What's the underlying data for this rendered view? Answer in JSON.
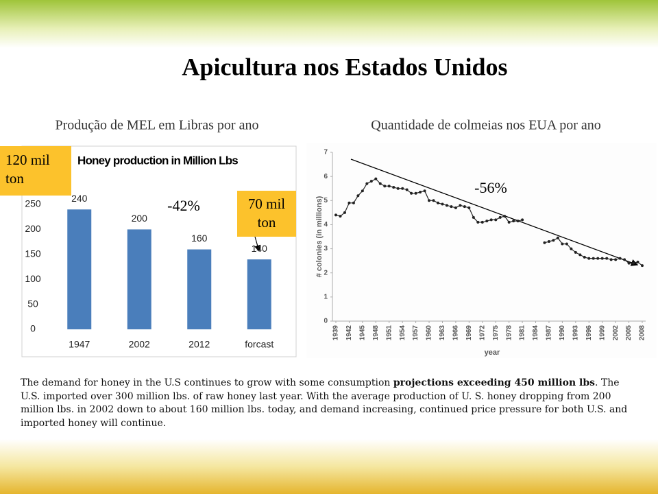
{
  "title": "Apicultura nos Estados Unidos",
  "body": {
    "before": "The demand for honey in the U.S continues to grow with some consumption ",
    "bold": "projections exceeding 450 million lbs",
    "after": ". The U.S. imported over 300 million lbs. of raw honey last year. With the average production of U. S. honey dropping from 200 million lbs. in 2002 down to about 160 million lbs. today, and demand increasing, continued price pressure for both U.S. and imported honey will continue."
  },
  "chart_data": [
    {
      "type": "bar",
      "subtitle": "Produção de MEL em Libras por ano",
      "title": "Honey production in Million Lbs",
      "categories": [
        "1947",
        "2002",
        "2012",
        "forcast"
      ],
      "values": [
        240,
        200,
        160,
        140
      ],
      "color": "#4a7ebb",
      "ylim": [
        0,
        300
      ],
      "yticks": [
        0,
        50,
        100,
        150,
        200,
        250
      ],
      "grid": false,
      "annotations": [
        "120 mil ton",
        "-42%",
        "70 mil ton"
      ]
    },
    {
      "type": "line",
      "subtitle": "Quantidade de colmeias nos EUA por ano",
      "ylabel": "# colonies (in millions)",
      "xlabel": "year",
      "color": "#222222",
      "x": [
        1939,
        1940,
        1941,
        1942,
        1943,
        1944,
        1945,
        1946,
        1947,
        1948,
        1949,
        1950,
        1951,
        1952,
        1953,
        1954,
        1955,
        1956,
        1957,
        1958,
        1959,
        1960,
        1961,
        1962,
        1963,
        1964,
        1965,
        1966,
        1967,
        1968,
        1969,
        1970,
        1971,
        1972,
        1973,
        1974,
        1975,
        1976,
        1977,
        1978,
        1979,
        1980,
        1981,
        1982,
        1983,
        1984,
        1985,
        1986,
        1987,
        1988,
        1989,
        1990,
        1991,
        1992,
        1993,
        1994,
        1995,
        1996,
        1997,
        1998,
        1999,
        2000,
        2001,
        2002,
        2003,
        2004,
        2005,
        2006,
        2007,
        2008
      ],
      "values": [
        4.4,
        4.35,
        4.5,
        4.9,
        4.9,
        5.2,
        5.4,
        5.7,
        5.8,
        5.9,
        5.7,
        5.6,
        5.6,
        5.55,
        5.5,
        5.5,
        5.45,
        5.3,
        5.3,
        5.35,
        5.4,
        5.0,
        5.0,
        4.9,
        4.85,
        4.8,
        4.75,
        4.7,
        4.8,
        4.75,
        4.7,
        4.3,
        4.1,
        4.1,
        4.15,
        4.2,
        4.2,
        4.3,
        4.35,
        4.1,
        4.15,
        4.15,
        4.2,
        null,
        null,
        null,
        null,
        3.25,
        3.3,
        3.35,
        3.45,
        3.2,
        3.2,
        3.0,
        2.85,
        2.75,
        2.65,
        2.6,
        2.6,
        2.6,
        2.6,
        2.6,
        2.55,
        2.55,
        2.6,
        2.55,
        2.4,
        2.4,
        2.45,
        2.3
      ],
      "xlim": [
        1939,
        2008
      ],
      "xticks": [
        1939,
        1942,
        1945,
        1948,
        1951,
        1954,
        1957,
        1960,
        1963,
        1966,
        1969,
        1972,
        1975,
        1978,
        1981,
        1984,
        1987,
        1990,
        1993,
        1996,
        1999,
        2002,
        2005,
        2008
      ],
      "ylim": [
        0,
        7
      ],
      "yticks": [
        0,
        1,
        2,
        3,
        4,
        5,
        6,
        7
      ],
      "annotations": [
        "-56%"
      ]
    }
  ]
}
